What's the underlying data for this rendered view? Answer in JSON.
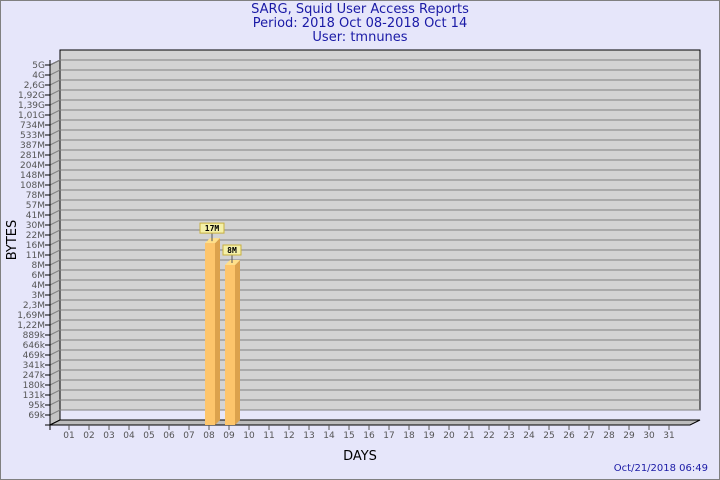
{
  "chart_data": {
    "type": "bar",
    "title": [
      "SARG, Squid User Access Reports",
      "Period: 2018 Oct 08-2018 Oct 14",
      "User: tmnunes"
    ],
    "xlabel": "DAYS",
    "ylabel": "BYTES",
    "categories": [
      "01",
      "02",
      "03",
      "04",
      "05",
      "06",
      "07",
      "08",
      "09",
      "10",
      "11",
      "12",
      "13",
      "14",
      "15",
      "16",
      "17",
      "18",
      "19",
      "20",
      "21",
      "22",
      "23",
      "24",
      "25",
      "26",
      "27",
      "28",
      "29",
      "30",
      "31"
    ],
    "values": [
      null,
      null,
      null,
      null,
      null,
      null,
      null,
      17000000,
      8000000,
      null,
      null,
      null,
      null,
      null,
      null,
      null,
      null,
      null,
      null,
      null,
      null,
      null,
      null,
      null,
      null,
      null,
      null,
      null,
      null,
      null,
      null
    ],
    "data_labels": {
      "08": "17M",
      "09": "8M"
    },
    "yticks": [
      "5G",
      "4G",
      "2,6G",
      "1,92G",
      "1,39G",
      "1,01G",
      "734M",
      "533M",
      "387M",
      "281M",
      "204M",
      "148M",
      "108M",
      "78M",
      "57M",
      "41M",
      "30M",
      "22M",
      "16M",
      "11M",
      "8M",
      "6M",
      "4M",
      "3M",
      "2,3M",
      "1,69M",
      "1,22M",
      "889k",
      "646k",
      "469k",
      "341k",
      "247k",
      "180k",
      "131k",
      "95k",
      "69k"
    ],
    "ytick_values": [
      5000000000.0,
      4000000000.0,
      2600000000.0,
      1920000000.0,
      1390000000.0,
      1010000000.0,
      734000000.0,
      533000000.0,
      387000000.0,
      281000000.0,
      204000000.0,
      148000000.0,
      108000000.0,
      78000000.0,
      57000000.0,
      41000000.0,
      30000000.0,
      22000000.0,
      16000000.0,
      11000000.0,
      8000000.0,
      6000000.0,
      4000000.0,
      3000000.0,
      2300000.0,
      1690000.0,
      1220000.0,
      889000.0,
      646000.0,
      469000.0,
      341000.0,
      247000.0,
      180000.0,
      131000.0,
      95000.0,
      69000.0
    ],
    "yscale": "log",
    "grid": true,
    "style": "3d",
    "colors": {
      "bar": "#fdc56b",
      "bar_side": "#dca24c",
      "bar_top": "#ffe08a",
      "panel": "#d3d3d3",
      "grid": "#808080",
      "label_bg": "#f4f0a8",
      "title": "#1a1aa6"
    }
  },
  "timestamp": "Oct/21/2018 06:49"
}
